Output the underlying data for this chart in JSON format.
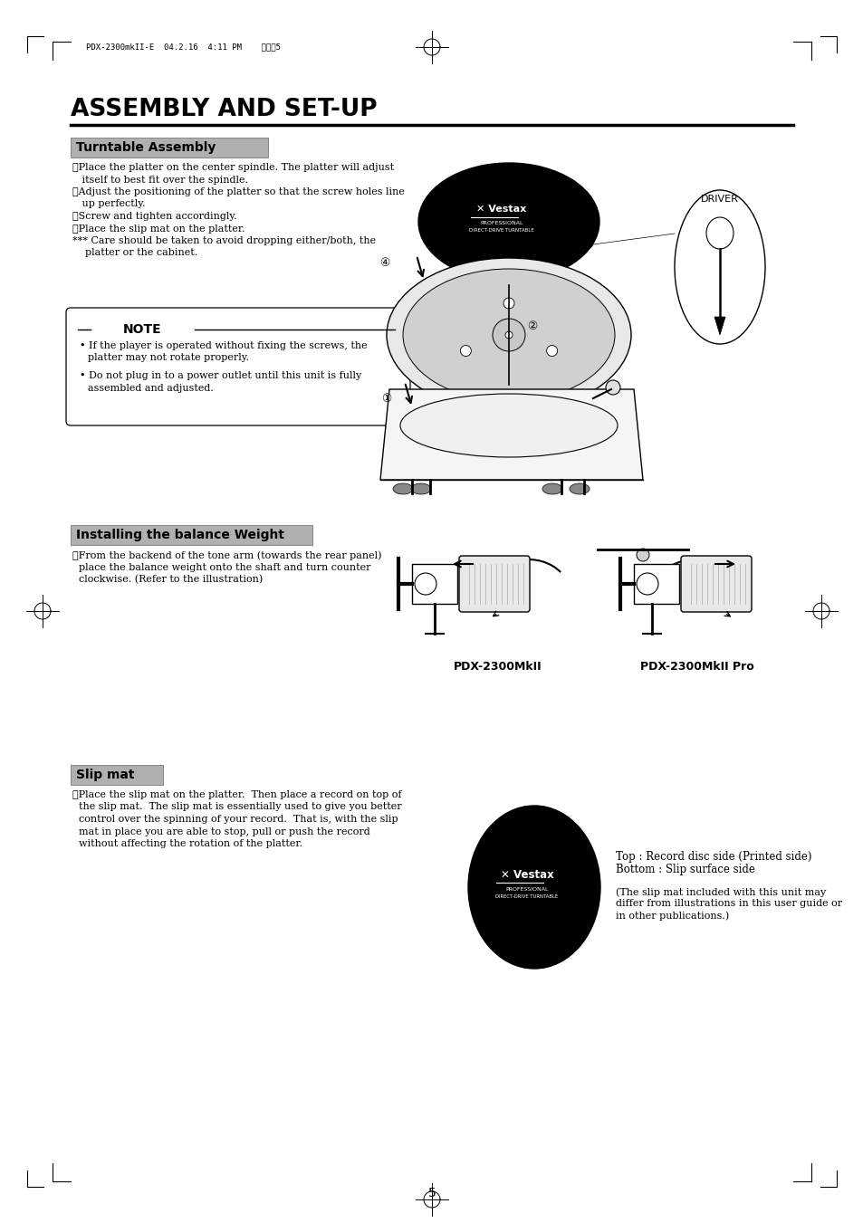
{
  "bg_color": "#ffffff",
  "page_number": "5",
  "header_text": "PDX-2300mkII-E  04.2.16  4:11 PM    ページ5",
  "title": "ASSEMBLY AND SET-UP",
  "section1_title": "Turntable Assembly",
  "section1_title_bg": "#b0b0b0",
  "s1_step1": "①Place the platter on the center spindle. The platter will adjust",
  "s1_step1b": "   itself to best fit over the spindle.",
  "s1_step2": "②Adjust the positioning of the platter so that the screw holes line",
  "s1_step2b": "   up perfectly.",
  "s1_step3": "③Screw and tighten accordingly.",
  "s1_step4": "④Place the slip mat on the platter.",
  "s1_step5": "*** Care should be taken to avoid dropping either/both, the",
  "s1_step5b": "    platter or the cabinet.",
  "note_title": "NOTE",
  "note_b1a": "If the player is operated without fixing the screws, the",
  "note_b1b": "platter may not rotate properly.",
  "note_b2a": "Do not plug in to a power outlet until this unit is fully",
  "note_b2b": "assembled and adjusted.",
  "driver_label": "DRIVER",
  "section2_title": "Installing the balance Weight",
  "section2_title_bg": "#b0b0b0",
  "s2_step1a": "①From the backend of the tone arm (towards the rear panel)",
  "s2_step1b": "  place the balance weight onto the shaft and turn counter",
  "s2_step1c": "  clockwise. (Refer to the illustration)",
  "pdx_label1": "PDX-2300MkII",
  "pdx_label2": "PDX-2300MkII Pro",
  "section3_title": "Slip mat",
  "section3_title_bg": "#b0b0b0",
  "s3_step1a": "①Place the slip mat on the platter.  Then place a record on top of",
  "s3_step1b": "  the slip mat.  The slip mat is essentially used to give you better",
  "s3_step1c": "  control over the spinning of your record.  That is, with the slip",
  "s3_step1d": "  mat in place you are able to stop, pull or push the record",
  "s3_step1e": "  without affecting the rotation of the platter.",
  "slip_text1": "Top : Record disc side (Printed side)",
  "slip_text2": "Bottom : Slip surface side",
  "slip_text3a": "(The slip mat included with this unit may",
  "slip_text3b": "differ from illustrations in this user guide or",
  "slip_text3c": "in other publications.)",
  "vestax1": "✕ Vestax",
  "vestax2": "PROFESSIONAL",
  "vestax3": "DIRECT-DRIVE TURNTABLE"
}
